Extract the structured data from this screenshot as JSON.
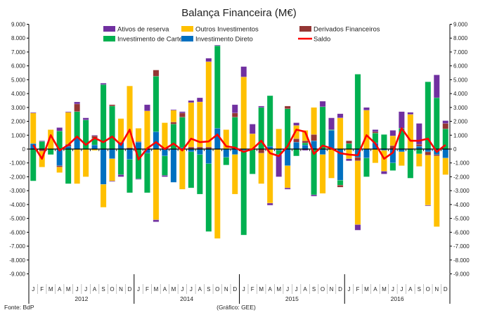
{
  "chart_data": {
    "type": "bar",
    "stacked": true,
    "title": "Balança Financeira (M€)",
    "xlabel": "",
    "ylabel": "M€",
    "ylim": [
      -9000,
      9000
    ],
    "yticks": [
      -9000,
      -8000,
      -7000,
      -6000,
      -5000,
      -4000,
      -3000,
      -2000,
      -1000,
      0,
      1000,
      2000,
      3000,
      4000,
      5000,
      6000,
      7000,
      8000,
      9000
    ],
    "grid": false,
    "legend_position": "top",
    "years": [
      "2012",
      "2014",
      "2015",
      "2016"
    ],
    "months": [
      "J",
      "F",
      "M",
      "A",
      "M",
      "J",
      "J",
      "A",
      "S",
      "O",
      "N",
      "D"
    ],
    "series": [
      {
        "name": "Investimento Direto",
        "color": "#0070c0",
        "values": [
          400,
          0,
          0,
          -1200,
          200,
          800,
          0,
          300,
          -2550,
          -700,
          500,
          -750,
          500,
          -300,
          1250,
          -500,
          -2400,
          100,
          -200,
          -400,
          -1050,
          1500,
          -600,
          -400,
          -100,
          0,
          0,
          200,
          -100,
          -1200,
          500,
          300,
          600,
          -400,
          1350,
          -2250,
          0,
          -600,
          -650,
          450,
          -100,
          -1000,
          -200,
          0,
          200,
          -200,
          -400,
          -650
        ]
      },
      {
        "name": "Investimento de Carteira",
        "color": "#00b050",
        "values": [
          -2300,
          550,
          -400,
          1300,
          -2500,
          1900,
          2100,
          500,
          4650,
          3100,
          -1850,
          -2400,
          -2150,
          -2850,
          4000,
          -1400,
          1800,
          2200,
          -2600,
          -2850,
          -4900,
          5950,
          -550,
          2300,
          -6100,
          -1800,
          3000,
          3650,
          -300,
          2900,
          -500,
          150,
          -3300,
          3050,
          50,
          -350,
          400,
          5400,
          -1350,
          700,
          1050,
          -550,
          1500,
          -2100,
          -350,
          4850,
          3700,
          1450
        ]
      },
      {
        "name": "Derivados Financeiros",
        "color": "#943634",
        "values": [
          0,
          -150,
          0,
          -100,
          150,
          550,
          0,
          150,
          0,
          100,
          0,
          100,
          50,
          0,
          450,
          0,
          150,
          300,
          150,
          150,
          150,
          0,
          0,
          300,
          0,
          0,
          -300,
          0,
          0,
          200,
          250,
          150,
          450,
          0,
          0,
          -150,
          200,
          -250,
          0,
          100,
          0,
          250,
          0,
          50,
          150,
          -250,
          -100,
          400
        ]
      },
      {
        "name": "Outros Investimentos",
        "color": "#ffc000",
        "values": [
          2200,
          -1150,
          1400,
          -400,
          2300,
          -2500,
          -2000,
          -100,
          -1650,
          -1600,
          1700,
          4450,
          950,
          2750,
          -5100,
          1900,
          850,
          -2900,
          3200,
          3250,
          6150,
          -6450,
          1400,
          -2850,
          5200,
          1100,
          -2200,
          -3900,
          1450,
          -1600,
          950,
          750,
          1950,
          -2800,
          -2100,
          2250,
          -700,
          -4600,
          2800,
          -1000,
          -1500,
          700,
          -1000,
          2450,
          -900,
          -3600,
          -5100,
          -1200
        ]
      },
      {
        "name": "Ativos de reserva",
        "color": "#7030a0",
        "values": [
          50,
          50,
          0,
          250,
          50,
          150,
          150,
          50,
          100,
          -50,
          -150,
          0,
          -50,
          450,
          -150,
          -100,
          50,
          100,
          150,
          300,
          250,
          50,
          0,
          600,
          750,
          700,
          100,
          -150,
          -1600,
          -100,
          200,
          -100,
          -100,
          400,
          850,
          300,
          -150,
          -400,
          200,
          150,
          -200,
          400,
          1200,
          150,
          1500,
          -50,
          1650,
          200
        ]
      }
    ],
    "line_series": {
      "name": "Saldo",
      "color": "#ff0000",
      "values": [
        300,
        -700,
        1000,
        -100,
        300,
        900,
        300,
        800,
        500,
        900,
        300,
        1400,
        -750,
        50,
        500,
        0,
        400,
        -100,
        750,
        500,
        550,
        1050,
        200,
        100,
        -200,
        0,
        600,
        -300,
        -500,
        200,
        1400,
        1250,
        -350,
        250,
        50,
        -300,
        -400,
        -450,
        1000,
        400,
        -700,
        -250,
        1500,
        600,
        600,
        750,
        -200,
        300
      ]
    },
    "legend": [
      "Ativos de reserva",
      "Outros Investimentos",
      "Derivados Financeiros",
      "Investimento de Carteira",
      "Investimento Direto",
      "Saldo"
    ]
  },
  "footer": {
    "source": "Fonte: BdP",
    "credit": "(Gráfico: GEE)"
  }
}
